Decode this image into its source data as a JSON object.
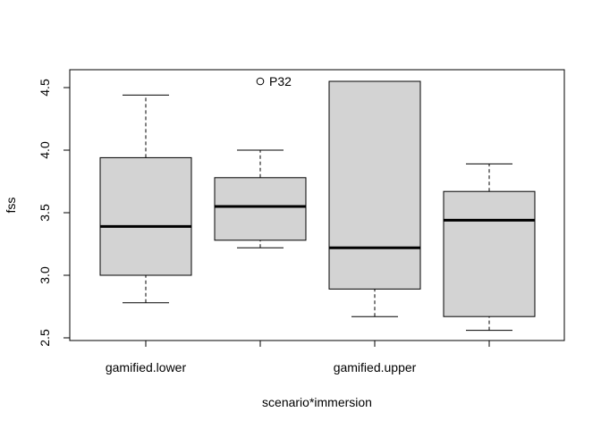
{
  "chart_data": {
    "type": "boxplot",
    "title": "",
    "xlabel": "scenario*immersion",
    "ylabel": "fss",
    "ylim": [
      2.5,
      4.6
    ],
    "yticks": [
      2.5,
      3.0,
      3.5,
      4.0,
      4.5
    ],
    "ytick_labels": [
      "2.5",
      "3.0",
      "3.5",
      "4.0",
      "4.5"
    ],
    "xtick_labels": [
      "gamified.lower",
      "",
      "gamified.upper",
      ""
    ],
    "box_color": "#d3d3d3",
    "boxes": [
      {
        "name": "gamified.lower",
        "whisker_low": 2.78,
        "q1": 3.0,
        "median": 3.39,
        "q3": 3.94,
        "whisker_high": 4.44
      },
      {
        "name": "",
        "whisker_low": 3.22,
        "q1": 3.28,
        "median": 3.55,
        "q3": 3.78,
        "whisker_high": 4.0
      },
      {
        "name": "gamified.upper",
        "whisker_low": 2.67,
        "q1": 2.89,
        "median": 3.22,
        "q3": 4.55,
        "whisker_high": 4.55
      },
      {
        "name": "",
        "whisker_low": 2.56,
        "q1": 2.67,
        "median": 3.44,
        "q3": 3.67,
        "whisker_high": 3.89
      }
    ],
    "outliers": [
      {
        "box": 1,
        "value": 4.55,
        "label": "P32"
      }
    ]
  }
}
